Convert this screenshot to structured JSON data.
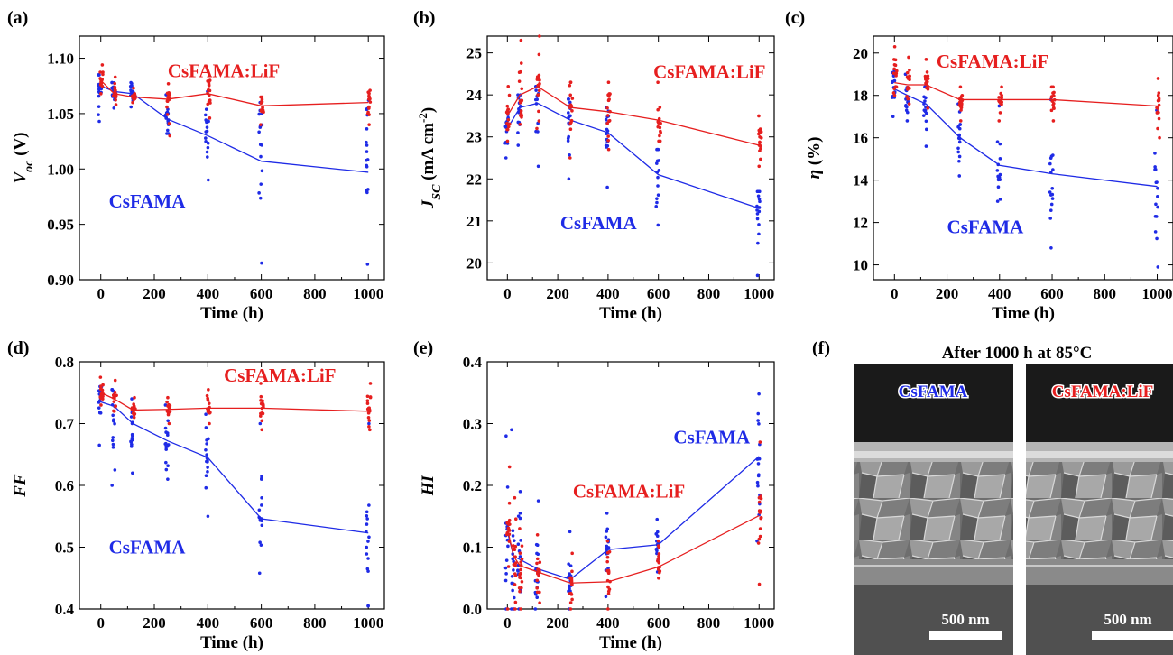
{
  "colors": {
    "CsFAMA": "#1f2be6",
    "CsFAMA:LiF": "#e61f1f"
  },
  "chart_data": [
    {
      "panel": "(a)",
      "type": "scatter",
      "xlabel": "Time (h)",
      "ylabel_parts": [
        [
          "V",
          "italic",
          ""
        ],
        [
          "oc",
          "italic",
          "sub"
        ],
        [
          " (V)",
          "normal",
          ""
        ]
      ],
      "xlim": [
        -80,
        1060
      ],
      "ylim": [
        0.9,
        1.12
      ],
      "xticks": [
        0,
        200,
        400,
        600,
        800,
        1000
      ],
      "xtick_labels": [
        "0",
        "200",
        "400",
        "600",
        "800",
        "1000"
      ],
      "yticks": [
        0.9,
        0.95,
        1.0,
        1.05,
        1.1
      ],
      "ytick_labels": [
        "0.90",
        "0.95",
        "1.00",
        "1.05",
        "1.10"
      ],
      "annotations": [
        {
          "text": "CsFAMA:LiF",
          "series": "CsFAMA:LiF",
          "x": 250,
          "y": 1.083
        },
        {
          "text": "CsFAMA",
          "series": "CsFAMA",
          "x": 30,
          "y": 0.965
        }
      ],
      "series": [
        {
          "name": "CsFAMA",
          "x": [
            0,
            50,
            120,
            250,
            400,
            600,
            1000
          ],
          "mean": [
            1.075,
            1.07,
            1.068,
            1.045,
            1.03,
            1.007,
            0.997
          ],
          "spread_low": [
            1.043,
            1.055,
            1.056,
            1.032,
            0.99,
            0.915,
            0.914
          ],
          "spread_high": [
            1.085,
            1.078,
            1.078,
            1.067,
            1.07,
            1.06,
            1.062
          ]
        },
        {
          "name": "CsFAMA:LiF",
          "x": [
            0,
            50,
            120,
            250,
            400,
            600,
            1000
          ],
          "mean": [
            1.08,
            1.068,
            1.065,
            1.063,
            1.068,
            1.057,
            1.06
          ],
          "spread_low": [
            1.068,
            1.058,
            1.06,
            1.03,
            1.046,
            1.04,
            1.04
          ],
          "spread_high": [
            1.094,
            1.083,
            1.073,
            1.077,
            1.08,
            1.065,
            1.071
          ]
        }
      ]
    },
    {
      "panel": "(b)",
      "type": "scatter",
      "xlabel": "Time (h)",
      "ylabel_parts": [
        [
          "J",
          "italic",
          ""
        ],
        [
          "SC",
          "italic",
          "sub"
        ],
        [
          " (mA cm",
          "normal",
          ""
        ],
        [
          "-2",
          "normal",
          "sup"
        ],
        [
          ")",
          "normal",
          ""
        ]
      ],
      "xlim": [
        -80,
        1060
      ],
      "ylim": [
        19.6,
        25.4
      ],
      "xticks": [
        0,
        200,
        400,
        600,
        800,
        1000
      ],
      "xtick_labels": [
        "0",
        "200",
        "400",
        "600",
        "800",
        "1000"
      ],
      "yticks": [
        20,
        21,
        22,
        23,
        24,
        25
      ],
      "ytick_labels": [
        "20",
        "21",
        "22",
        "23",
        "24",
        "25"
      ],
      "annotations": [
        {
          "text": "CsFAMA:LiF",
          "series": "CsFAMA:LiF",
          "x": 580,
          "y": 24.4
        },
        {
          "text": "CsFAMA",
          "series": "CsFAMA",
          "x": 210,
          "y": 20.8
        }
      ],
      "series": [
        {
          "name": "CsFAMA",
          "x": [
            0,
            50,
            120,
            250,
            400,
            600,
            1000
          ],
          "mean": [
            23.2,
            23.7,
            23.8,
            23.4,
            23.1,
            22.1,
            21.3
          ],
          "spread_low": [
            22.5,
            22.8,
            22.3,
            22.0,
            21.8,
            20.9,
            19.7
          ],
          "spread_high": [
            23.6,
            24.0,
            24.2,
            23.9,
            23.7,
            22.7,
            21.7
          ]
        },
        {
          "name": "CsFAMA:LiF",
          "x": [
            0,
            50,
            120,
            250,
            400,
            600,
            1000
          ],
          "mean": [
            23.5,
            24.0,
            24.2,
            23.7,
            23.6,
            23.4,
            22.8
          ],
          "spread_low": [
            22.9,
            23.3,
            23.2,
            22.5,
            22.7,
            22.9,
            22.3
          ],
          "spread_high": [
            24.2,
            25.3,
            25.4,
            24.3,
            24.3,
            24.3,
            23.5
          ]
        }
      ]
    },
    {
      "panel": "(c)",
      "type": "scatter",
      "xlabel": "Time (h)",
      "ylabel_parts": [
        [
          "η",
          "italic",
          ""
        ],
        [
          " (%)",
          "normal",
          ""
        ]
      ],
      "xlim": [
        -80,
        1060
      ],
      "ylim": [
        9.3,
        20.8
      ],
      "xticks": [
        0,
        200,
        400,
        600,
        800,
        1000
      ],
      "xtick_labels": [
        "0",
        "200",
        "400",
        "600",
        "800",
        "1000"
      ],
      "yticks": [
        10,
        12,
        14,
        16,
        18,
        20
      ],
      "ytick_labels": [
        "10",
        "12",
        "14",
        "16",
        "18",
        "20"
      ],
      "annotations": [
        {
          "text": "CsFAMA:LiF",
          "series": "CsFAMA:LiF",
          "x": 160,
          "y": 19.3
        },
        {
          "text": "CsFAMA",
          "series": "CsFAMA",
          "x": 200,
          "y": 11.5
        }
      ],
      "series": [
        {
          "name": "CsFAMA",
          "x": [
            0,
            50,
            120,
            250,
            400,
            600,
            1000
          ],
          "mean": [
            18.3,
            18.0,
            17.6,
            16.0,
            14.7,
            14.3,
            13.7
          ],
          "spread_low": [
            17.0,
            16.8,
            15.6,
            14.2,
            13.0,
            10.8,
            9.9
          ],
          "spread_high": [
            19.2,
            19.0,
            18.4,
            17.6,
            17.5,
            17.8,
            17.3
          ]
        },
        {
          "name": "CsFAMA:LiF",
          "x": [
            0,
            50,
            120,
            250,
            400,
            600,
            1000
          ],
          "mean": [
            18.6,
            18.5,
            18.5,
            17.8,
            17.8,
            17.8,
            17.5
          ],
          "spread_low": [
            18.0,
            17.6,
            17.4,
            16.8,
            16.8,
            16.8,
            16.0
          ],
          "spread_high": [
            20.3,
            19.8,
            19.7,
            18.4,
            18.4,
            18.4,
            18.8
          ]
        }
      ]
    },
    {
      "panel": "(d)",
      "type": "scatter",
      "xlabel": "Time (h)",
      "ylabel_parts": [
        [
          "FF",
          "italic",
          ""
        ]
      ],
      "xlim": [
        -80,
        1060
      ],
      "ylim": [
        0.4,
        0.8
      ],
      "xticks": [
        0,
        200,
        400,
        600,
        800,
        1000
      ],
      "xtick_labels": [
        "0",
        "200",
        "400",
        "600",
        "800",
        "1000"
      ],
      "yticks": [
        0.4,
        0.5,
        0.6,
        0.7,
        0.8
      ],
      "ytick_labels": [
        "0.4",
        "0.5",
        "0.6",
        "0.7",
        "0.8"
      ],
      "annotations": [
        {
          "text": "CsFAMA:LiF",
          "series": "CsFAMA:LiF",
          "x": 460,
          "y": 0.768
        },
        {
          "text": "CsFAMA",
          "series": "CsFAMA",
          "x": 30,
          "y": 0.49
        }
      ],
      "series": [
        {
          "name": "CsFAMA",
          "x": [
            0,
            50,
            120,
            250,
            400,
            600,
            1000
          ],
          "mean": [
            0.735,
            0.728,
            0.7,
            0.672,
            0.645,
            0.546,
            0.523
          ],
          "spread_low": [
            0.665,
            0.6,
            0.62,
            0.61,
            0.55,
            0.458,
            0.405
          ],
          "spread_high": [
            0.76,
            0.755,
            0.74,
            0.73,
            0.715,
            0.7,
            0.7
          ]
        },
        {
          "name": "CsFAMA:LiF",
          "x": [
            0,
            50,
            120,
            250,
            400,
            600,
            1000
          ],
          "mean": [
            0.75,
            0.74,
            0.722,
            0.723,
            0.725,
            0.725,
            0.72
          ],
          "spread_low": [
            0.73,
            0.72,
            0.71,
            0.7,
            0.7,
            0.69,
            0.69
          ],
          "spread_high": [
            0.775,
            0.77,
            0.742,
            0.742,
            0.755,
            0.765,
            0.765
          ]
        }
      ]
    },
    {
      "panel": "(e)",
      "type": "scatter",
      "xlabel": "Time (h)",
      "ylabel_parts": [
        [
          "HI",
          "italic",
          ""
        ]
      ],
      "xlim": [
        -80,
        1060
      ],
      "ylim": [
        0.0,
        0.4
      ],
      "xticks": [
        0,
        200,
        400,
        600,
        800,
        1000
      ],
      "xtick_labels": [
        "0",
        "200",
        "400",
        "600",
        "800",
        "1000"
      ],
      "yticks": [
        0.0,
        0.1,
        0.2,
        0.3,
        0.4
      ],
      "ytick_labels": [
        "0.0",
        "0.1",
        "0.2",
        "0.3",
        "0.4"
      ],
      "annotations": [
        {
          "text": "CsFAMA",
          "series": "CsFAMA",
          "x": 660,
          "y": 0.268
        },
        {
          "text": "CsFAMA:LiF",
          "series": "CsFAMA:LiF",
          "x": 260,
          "y": 0.18
        }
      ],
      "series": [
        {
          "name": "CsFAMA",
          "x": [
            0,
            25,
            50,
            120,
            250,
            400,
            600,
            1000
          ],
          "mean": [
            0.125,
            0.085,
            0.08,
            0.065,
            0.048,
            0.096,
            0.104,
            0.247
          ],
          "spread_low": [
            0.0,
            0.0,
            0.0,
            0.0,
            0.0,
            0.02,
            0.06,
            0.11
          ],
          "spread_high": [
            0.28,
            0.29,
            0.19,
            0.175,
            0.125,
            0.155,
            0.145,
            0.348
          ]
        },
        {
          "name": "CsFAMA:LiF",
          "x": [
            0,
            25,
            50,
            120,
            250,
            400,
            600,
            1000
          ],
          "mean": [
            0.13,
            0.085,
            0.07,
            0.06,
            0.042,
            0.044,
            0.068,
            0.151
          ],
          "spread_low": [
            0.0,
            0.0,
            0.0,
            0.01,
            0.0,
            0.0,
            0.05,
            0.04
          ],
          "spread_high": [
            0.23,
            0.18,
            0.13,
            0.12,
            0.09,
            0.11,
            0.11,
            0.27
          ]
        }
      ]
    }
  ],
  "panel_f": {
    "label": "(f)",
    "title": "After 1000 h at 85°C",
    "images": [
      {
        "tag": "CsFAMA",
        "series": "CsFAMA",
        "scale_bar": "500 nm"
      },
      {
        "tag": "CsFAMA:LiF",
        "series": "CsFAMA:LiF",
        "scale_bar": "500 nm"
      }
    ]
  }
}
